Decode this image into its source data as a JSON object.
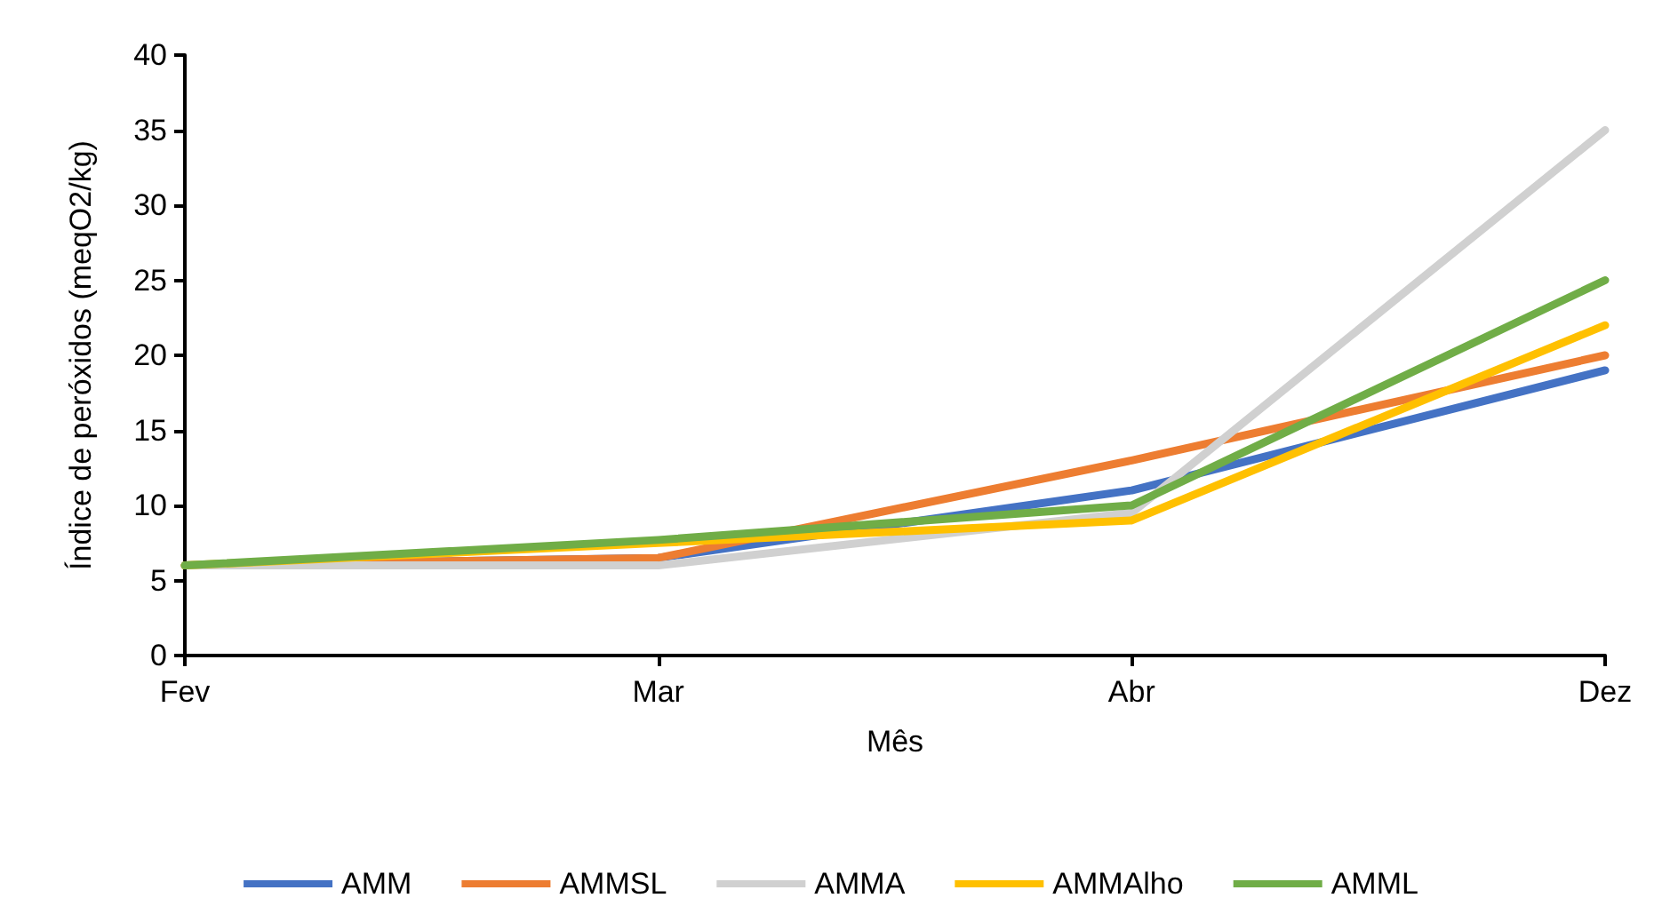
{
  "chart_data": {
    "type": "line",
    "xlabel": "Mês",
    "ylabel": "Índice de peróxidos (meqO2/kg)",
    "categories": [
      "Fev",
      "Mar",
      "Abr",
      "Dez"
    ],
    "series": [
      {
        "name": "AMM",
        "color": "#4472c4",
        "values": [
          6,
          6.5,
          11,
          19
        ]
      },
      {
        "name": "AMMSL",
        "color": "#ed7d31",
        "values": [
          6,
          6.5,
          13,
          20
        ]
      },
      {
        "name": "AMMA",
        "color": "#d0d0d0",
        "values": [
          6,
          6,
          9.5,
          35
        ]
      },
      {
        "name": "AMMAlho",
        "color": "#ffc000",
        "values": [
          6,
          7.5,
          9,
          22
        ]
      },
      {
        "name": "AMML",
        "color": "#70ad47",
        "values": [
          6,
          7.7,
          10,
          25
        ]
      }
    ],
    "ylim": [
      0,
      40
    ],
    "yticks": [
      0,
      5,
      10,
      15,
      20,
      25,
      30,
      35,
      40
    ],
    "grid": false,
    "legend": "bottom",
    "marker": "none",
    "line_style": "solid"
  }
}
